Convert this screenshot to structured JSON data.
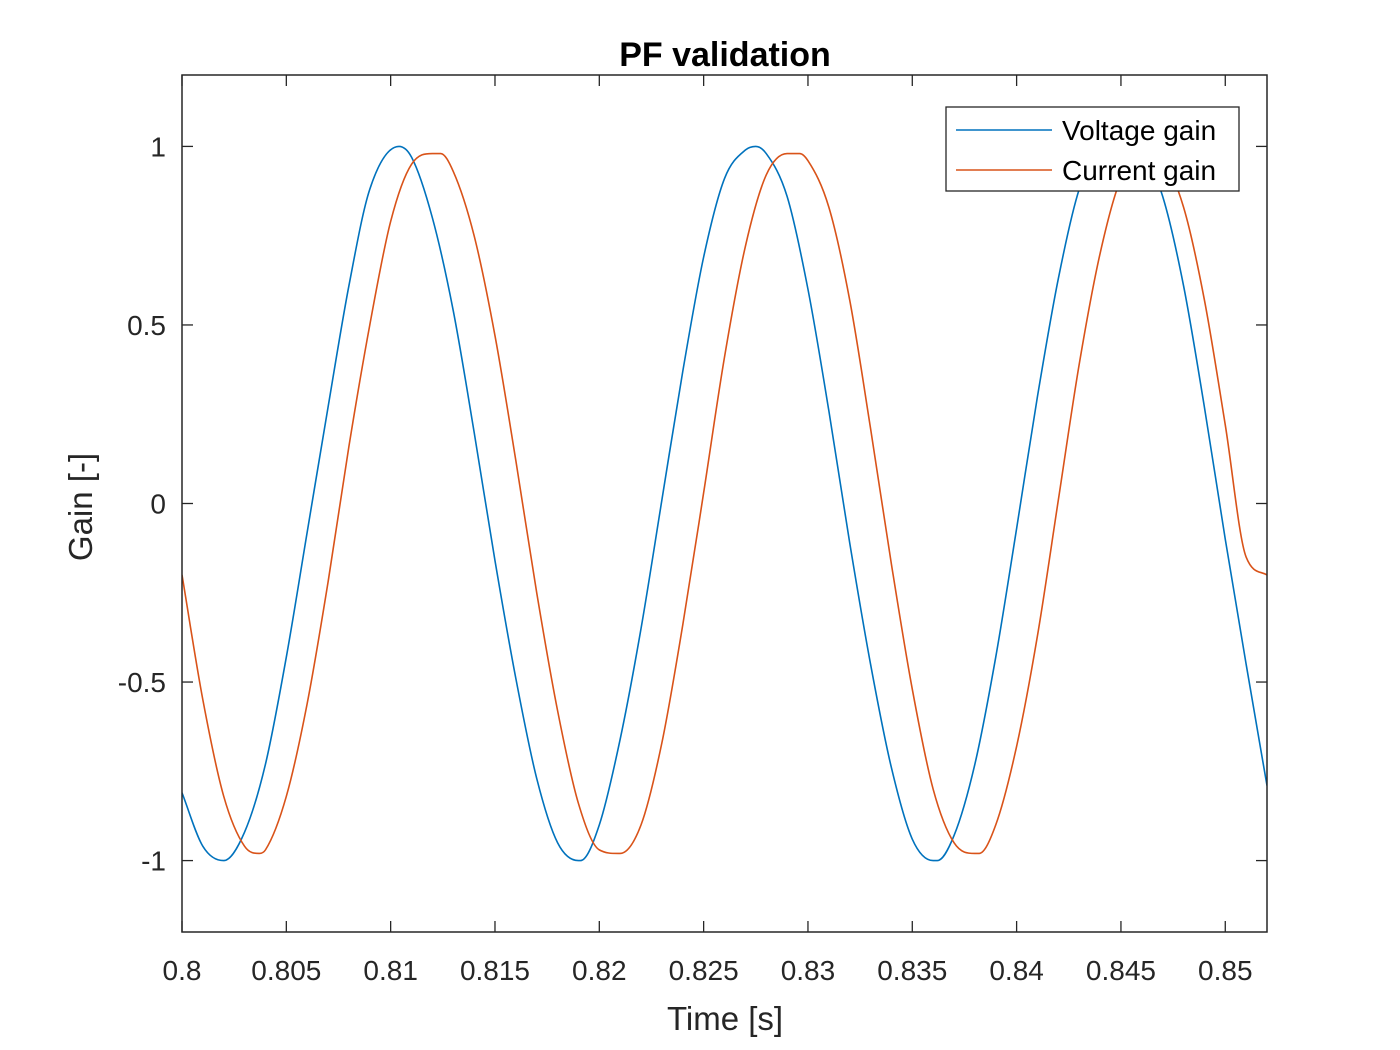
{
  "chart_data": {
    "type": "line",
    "title": "PF validation",
    "xlabel": "Time [s]",
    "ylabel": "Gain [-]",
    "xlim": [
      0.8,
      0.852
    ],
    "ylim": [
      -1.2,
      1.2
    ],
    "xticks": [
      0.8,
      0.805,
      0.81,
      0.815,
      0.82,
      0.825,
      0.83,
      0.835,
      0.84,
      0.845,
      0.85
    ],
    "xtick_labels": [
      "0.8",
      "0.805",
      "0.81",
      "0.815",
      "0.82",
      "0.825",
      "0.83",
      "0.835",
      "0.84",
      "0.845",
      "0.85"
    ],
    "yticks": [
      -1,
      -0.5,
      0,
      0.5,
      1
    ],
    "ytick_labels": [
      "-1",
      "-0.5",
      "0",
      "0.5",
      "1"
    ],
    "grid": false,
    "legend_position": "top-right",
    "series": [
      {
        "name": "Voltage gain",
        "color": "#0072bd",
        "x": [
          0.8,
          0.801,
          0.802,
          0.803,
          0.804,
          0.805,
          0.806,
          0.807,
          0.808,
          0.809,
          0.8104,
          0.811,
          0.812,
          0.813,
          0.814,
          0.815,
          0.816,
          0.817,
          0.818,
          0.819,
          0.8191,
          0.82,
          0.821,
          0.822,
          0.823,
          0.824,
          0.825,
          0.826,
          0.827,
          0.8275,
          0.828,
          0.829,
          0.83,
          0.831,
          0.832,
          0.833,
          0.834,
          0.835,
          0.836,
          0.8362,
          0.837,
          0.838,
          0.839,
          0.84,
          0.841,
          0.842,
          0.843,
          0.844,
          0.845,
          0.8458,
          0.846,
          0.847,
          0.848,
          0.849,
          0.85,
          0.851,
          0.852
        ],
        "y": [
          -0.81,
          -0.96,
          -1.0,
          -0.92,
          -0.73,
          -0.43,
          -0.08,
          0.27,
          0.61,
          0.88,
          1.0,
          0.97,
          0.8,
          0.54,
          0.2,
          -0.16,
          -0.49,
          -0.77,
          -0.95,
          -1.0,
          -1.0,
          -0.9,
          -0.66,
          -0.35,
          0.01,
          0.37,
          0.69,
          0.91,
          0.99,
          1.0,
          0.98,
          0.86,
          0.6,
          0.26,
          -0.11,
          -0.45,
          -0.74,
          -0.94,
          -1.0,
          -1.0,
          -0.93,
          -0.73,
          -0.43,
          -0.07,
          0.3,
          0.63,
          0.88,
          0.99,
          0.98,
          1.0,
          0.99,
          0.86,
          0.61,
          0.27,
          -0.1,
          -0.45,
          -0.79
        ]
      },
      {
        "name": "Current gain",
        "color": "#d95319",
        "x": [
          0.8,
          0.801,
          0.802,
          0.803,
          0.8037,
          0.804,
          0.805,
          0.806,
          0.807,
          0.808,
          0.809,
          0.81,
          0.811,
          0.812,
          0.8124,
          0.813,
          0.814,
          0.815,
          0.816,
          0.817,
          0.818,
          0.819,
          0.82,
          0.8209,
          0.821,
          0.822,
          0.823,
          0.824,
          0.825,
          0.826,
          0.827,
          0.828,
          0.829,
          0.8296,
          0.83,
          0.831,
          0.832,
          0.833,
          0.834,
          0.835,
          0.836,
          0.837,
          0.838,
          0.8382,
          0.839,
          0.84,
          0.841,
          0.842,
          0.843,
          0.844,
          0.845,
          0.846,
          0.847,
          0.848,
          0.849,
          0.85,
          0.851,
          0.852
        ],
        "y": [
          -0.2,
          -0.55,
          -0.82,
          -0.96,
          -0.98,
          -0.97,
          -0.82,
          -0.56,
          -0.22,
          0.16,
          0.5,
          0.79,
          0.95,
          0.98,
          0.98,
          0.93,
          0.75,
          0.47,
          0.12,
          -0.25,
          -0.58,
          -0.84,
          -0.97,
          -0.98,
          -0.98,
          -0.9,
          -0.67,
          -0.34,
          0.03,
          0.41,
          0.72,
          0.92,
          0.98,
          0.98,
          0.96,
          0.83,
          0.57,
          0.21,
          -0.17,
          -0.52,
          -0.8,
          -0.95,
          -0.98,
          -0.98,
          -0.9,
          -0.68,
          -0.37,
          0.01,
          0.39,
          0.7,
          0.91,
          0.98,
          0.96,
          0.83,
          0.57,
          0.22,
          -0.15,
          -0.2
        ]
      }
    ]
  }
}
